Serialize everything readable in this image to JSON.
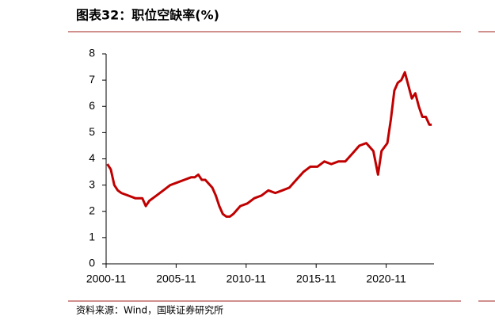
{
  "chart_data": {
    "type": "line",
    "title": "图表32：职位空缺率(%)",
    "source": "资料来源：Wind，国联证券研究所",
    "x": [
      "2000-12",
      "2001-03",
      "2001-06",
      "2001-09",
      "2001-12",
      "2002-06",
      "2002-12",
      "2003-06",
      "2003-09",
      "2003-12",
      "2004-06",
      "2004-12",
      "2005-06",
      "2005-12",
      "2006-06",
      "2006-12",
      "2007-03",
      "2007-06",
      "2007-09",
      "2007-12",
      "2008-06",
      "2008-09",
      "2008-12",
      "2009-03",
      "2009-06",
      "2009-09",
      "2009-12",
      "2010-06",
      "2010-12",
      "2011-06",
      "2011-12",
      "2012-06",
      "2012-12",
      "2013-06",
      "2013-12",
      "2014-06",
      "2014-12",
      "2015-06",
      "2015-12",
      "2016-06",
      "2016-12",
      "2017-06",
      "2017-12",
      "2018-06",
      "2018-12",
      "2019-06",
      "2019-12",
      "2020-04",
      "2020-07",
      "2020-12",
      "2021-03",
      "2021-06",
      "2021-09",
      "2021-12",
      "2022-03",
      "2022-06",
      "2022-09",
      "2022-12",
      "2023-03",
      "2023-06",
      "2023-09",
      "2023-12",
      "2024-02"
    ],
    "series": [
      {
        "name": "职位空缺率",
        "color": "#c00000",
        "values": [
          3.8,
          3.6,
          3.0,
          2.8,
          2.7,
          2.6,
          2.5,
          2.5,
          2.2,
          2.4,
          2.6,
          2.8,
          3.0,
          3.1,
          3.2,
          3.3,
          3.3,
          3.4,
          3.2,
          3.2,
          2.9,
          2.6,
          2.2,
          1.9,
          1.8,
          1.8,
          1.9,
          2.2,
          2.3,
          2.5,
          2.6,
          2.8,
          2.7,
          2.8,
          2.9,
          3.2,
          3.5,
          3.7,
          3.7,
          3.9,
          3.8,
          3.9,
          3.9,
          4.2,
          4.5,
          4.6,
          4.3,
          3.4,
          4.3,
          4.6,
          5.5,
          6.6,
          6.9,
          7.0,
          7.3,
          6.8,
          6.3,
          6.5,
          6.0,
          5.6,
          5.6,
          5.3,
          5.3
        ]
      }
    ],
    "xlim": [
      "2000-11",
      "2024-04"
    ],
    "xticks": [
      "2000-11",
      "2005-11",
      "2010-11",
      "2015-11",
      "2020-11"
    ],
    "ylim": [
      0,
      8
    ],
    "yticks": [
      0,
      1,
      2,
      3,
      4,
      5,
      6,
      7,
      8
    ]
  }
}
